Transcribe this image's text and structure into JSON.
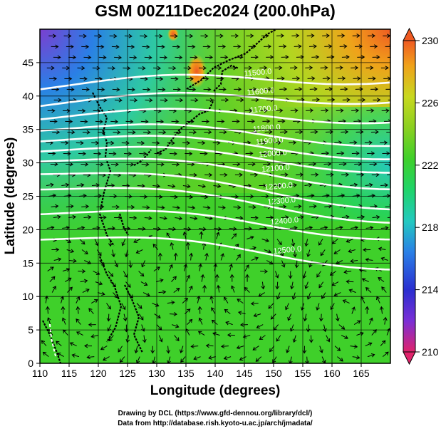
{
  "title": "GSM 00Z11Dec2024 (200.0hPa)",
  "xlabel": "Longitude (degrees)",
  "ylabel": "Latitude  (degrees)",
  "x_ticks": [
    "110",
    "115",
    "120",
    "125",
    "130",
    "135",
    "140",
    "145",
    "150",
    "155",
    "160",
    "165"
  ],
  "y_ticks": [
    "0",
    "5",
    "10",
    "15",
    "20",
    "25",
    "30",
    "35",
    "40",
    "45"
  ],
  "colorbar": {
    "ticks": [
      "230",
      "226",
      "222",
      "218",
      "214",
      "210"
    ],
    "colors": [
      "#e0236b",
      "#7a2fd6",
      "#2a2fd0",
      "#2a7fe6",
      "#23c9c0",
      "#1fd46a",
      "#3fd02a",
      "#8bd020",
      "#c8d81f",
      "#f0a21a",
      "#ef5a22"
    ]
  },
  "contour_labels": [
    "11500.0",
    "11600.0",
    "11700.0",
    "11800.0",
    "11900.0",
    "12000.0",
    "12100.0",
    "12200.0",
    "12300.0",
    "12400.0",
    "12500.0"
  ],
  "credits": {
    "line1": "Drawing by DCL (https://www.gfd-dennou.org/library/dcl/)",
    "line2": "Data from http://database.rish.kyoto-u.ac.jp/arch/jmadata/"
  },
  "chart_data": {
    "type": "heatmap",
    "title": "GSM 00Z11Dec2024 (200.0hPa)",
    "xlabel": "Longitude (degrees)",
    "ylabel": "Latitude  (degrees)",
    "xlim": [
      110,
      170
    ],
    "ylim": [
      0,
      50
    ],
    "color_range": [
      210,
      230
    ],
    "color_ticks": [
      210,
      214,
      218,
      222,
      226,
      230
    ],
    "contour_levels": [
      11500,
      11600,
      11700,
      11800,
      11900,
      12000,
      12100,
      12200,
      12300,
      12400,
      12500
    ],
    "contour_lats_at_west": [
      41,
      38.5,
      36.5,
      34.8,
      33.2,
      31.7,
      30.2,
      28.3,
      26,
      22.3,
      18.5
    ],
    "contour_lats_at_east": [
      43,
      40,
      37,
      33.5,
      31.5,
      29.5,
      27,
      24,
      22,
      19.5,
      15
    ],
    "vectors": "wind streamlines",
    "grid": true
  }
}
